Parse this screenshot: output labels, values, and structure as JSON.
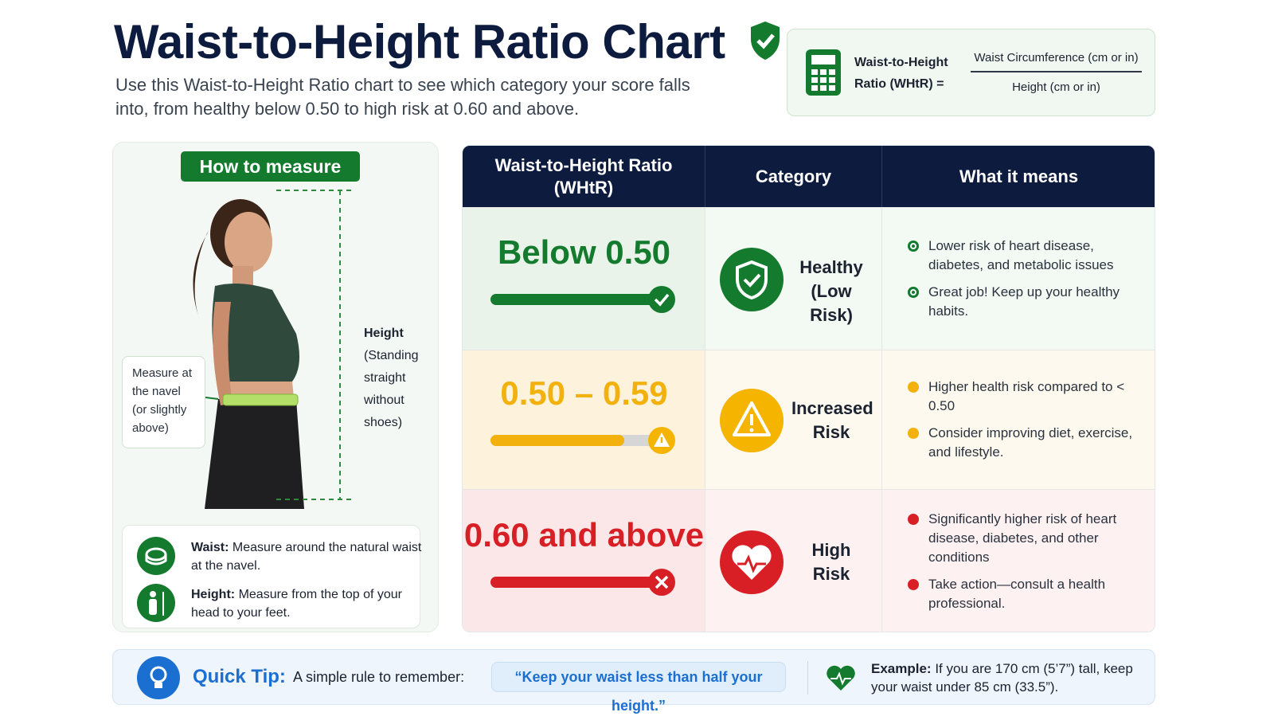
{
  "header": {
    "title": "Waist-to-Height Ratio Chart",
    "subtitle": "Use this Waist-to-Height Ratio chart to see which category your score falls into, from healthy below 0.50 to high risk at 0.60 and above."
  },
  "formula": {
    "label": "Waist-to-Height Ratio (WHtR) =",
    "numerator": "Waist Circumference (cm or in)",
    "denominator": "Height (cm or in)"
  },
  "measure": {
    "heading": "How to measure",
    "callout": "Measure at the navel (or slightly above)",
    "height_label": "Height",
    "height_note": "(Standing straight without shoes)",
    "steps": [
      {
        "label": "Waist:",
        "text": "Measure around the natural waist at the navel."
      },
      {
        "label": "Height:",
        "text": "Measure from the top of your head to your feet."
      }
    ]
  },
  "table": {
    "headers": [
      "Waist-to-Height Ratio (WHtR)",
      "Category",
      "What it means"
    ],
    "rows": [
      {
        "range": "Below 0.50",
        "category": "Healthy (Low Risk)",
        "points": [
          "Lower risk of heart disease, diabetes, and metabolic issues",
          "Great job! Keep up your healthy habits."
        ]
      },
      {
        "range": "0.50 – 0.59",
        "category": "Increased Risk",
        "points": [
          "Higher health risk compared to < 0.50",
          "Consider improving diet, exercise, and lifestyle."
        ]
      },
      {
        "range": "0.60 and above",
        "category": "High Risk",
        "points": [
          "Significantly higher risk of heart disease, diabetes, and other conditions",
          "Take action—consult a health professional."
        ]
      }
    ]
  },
  "tip": {
    "label": "Quick Tip:",
    "text": "A simple rule to remember:",
    "quote": "“Keep your waist less than half your height.”",
    "example_label": "Example:",
    "example_text": "If you are 170 cm (5’7”) tall, keep your waist under 85 cm (33.5”)."
  }
}
